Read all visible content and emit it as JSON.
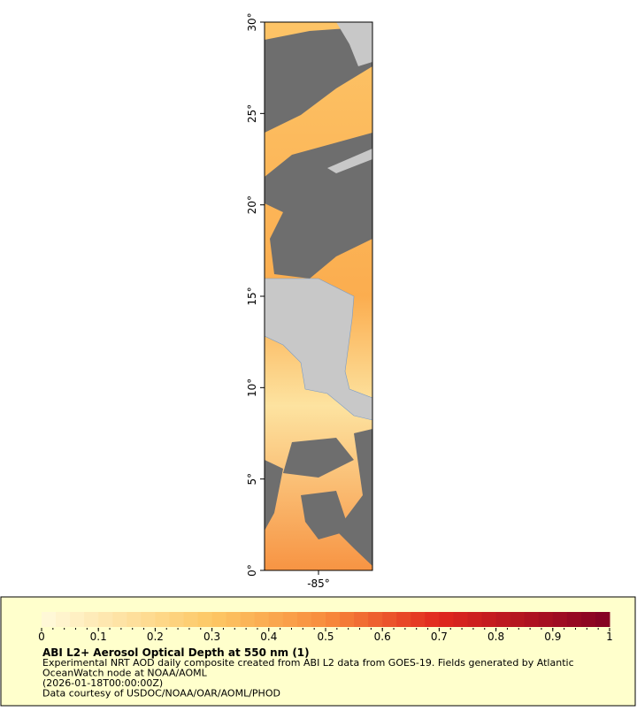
{
  "map": {
    "ylim": [
      0,
      30
    ],
    "xlim": [
      -88,
      -82
    ],
    "yticks": [
      {
        "value": 0,
        "label": "0°"
      },
      {
        "value": 5,
        "label": "5°"
      },
      {
        "value": 10,
        "label": "10°"
      },
      {
        "value": 15,
        "label": "15°"
      },
      {
        "value": 20,
        "label": "20°"
      },
      {
        "value": 25,
        "label": "25°"
      },
      {
        "value": 30,
        "label": "30°"
      }
    ],
    "xticks": [
      {
        "value": -85,
        "label": "-85°"
      }
    ]
  },
  "colorbar": {
    "lim": [
      0,
      1
    ],
    "ticks": [
      0,
      0.1,
      0.2,
      0.3,
      0.4,
      0.5,
      0.6,
      0.7,
      0.8,
      0.9,
      1
    ]
  },
  "legend": {
    "title": "ABI L2+ Aerosol Optical Depth at 550 nm (1)",
    "lines": [
      "Experimental NRT AOD daily composite created from ABI L2 data from GOES-19. Fields generated by Atlantic",
      "OceanWatch node at NOAA/AOML",
      "(2026-01-18T00:00:00Z)",
      "Data courtesy of USDOC/NOAA/OAR/AOML/PHOD"
    ]
  }
}
